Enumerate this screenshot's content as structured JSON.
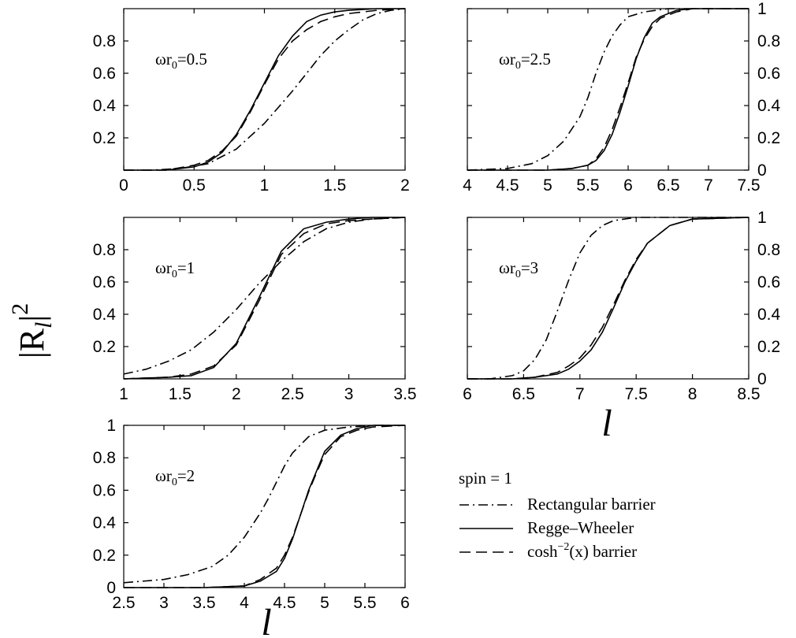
{
  "figure": {
    "y_axis_label": "|R_l|^2",
    "x_axis_label": "l",
    "legend": {
      "title": "spin = 1",
      "entries": [
        {
          "label": "Rectangular barrier",
          "style": "dash-dot"
        },
        {
          "label": "Regge–Wheeler",
          "style": "solid"
        },
        {
          "label": "cosh^-2(x) barrier",
          "style": "dashed"
        }
      ]
    }
  },
  "chart_data": [
    {
      "type": "line",
      "annotation": "ωr0=0.5",
      "xlim": [
        0,
        2
      ],
      "ylim": [
        0,
        1
      ],
      "xticks": [
        "0",
        "0.5",
        "1",
        "1.5",
        "2"
      ],
      "yticks": [
        "0.2",
        "0.4",
        "0.6",
        "0.8"
      ],
      "series": [
        {
          "name": "Rectangular barrier",
          "style": "dash-dot",
          "x": [
            0,
            0.2,
            0.4,
            0.6,
            0.8,
            1.0,
            1.1,
            1.2,
            1.3,
            1.4,
            1.5,
            1.6,
            1.7,
            1.8,
            1.9,
            2.0
          ],
          "y": [
            0.0,
            0.0,
            0.01,
            0.04,
            0.13,
            0.29,
            0.39,
            0.49,
            0.6,
            0.71,
            0.8,
            0.87,
            0.93,
            0.97,
            0.99,
            1.0
          ]
        },
        {
          "name": "Regge–Wheeler",
          "style": "solid",
          "x": [
            0,
            0.3,
            0.5,
            0.6,
            0.7,
            0.8,
            0.9,
            1.0,
            1.1,
            1.2,
            1.3,
            1.4,
            1.5,
            1.6,
            1.8,
            2.0
          ],
          "y": [
            0.0,
            0.0,
            0.02,
            0.05,
            0.11,
            0.22,
            0.37,
            0.54,
            0.71,
            0.83,
            0.92,
            0.96,
            0.98,
            0.99,
            1.0,
            1.0
          ]
        },
        {
          "name": "cosh^-2(x) barrier",
          "style": "dashed",
          "x": [
            0,
            0.3,
            0.5,
            0.6,
            0.7,
            0.8,
            0.9,
            1.0,
            1.1,
            1.2,
            1.3,
            1.4,
            1.5,
            1.6,
            1.8,
            2.0
          ],
          "y": [
            0.0,
            0.0,
            0.03,
            0.06,
            0.12,
            0.21,
            0.36,
            0.53,
            0.69,
            0.8,
            0.87,
            0.92,
            0.95,
            0.97,
            0.99,
            1.0
          ]
        }
      ]
    },
    {
      "type": "line",
      "annotation": "ωr0=2.5",
      "xlim": [
        4,
        7.5
      ],
      "ylim": [
        0,
        1
      ],
      "xticks": [
        "4",
        "4.5",
        "5",
        "5.5",
        "6",
        "6.5",
        "7",
        "7.5"
      ],
      "yticks": [
        "0",
        "0.2",
        "0.4",
        "0.6",
        "0.8",
        "1"
      ],
      "series": [
        {
          "name": "Rectangular barrier",
          "style": "dash-dot",
          "x": [
            4,
            4.5,
            4.8,
            5.0,
            5.2,
            5.4,
            5.5,
            5.6,
            5.7,
            5.8,
            5.9,
            6.0,
            6.2,
            6.5,
            7.0,
            7.5
          ],
          "y": [
            0.0,
            0.01,
            0.04,
            0.09,
            0.18,
            0.33,
            0.45,
            0.6,
            0.73,
            0.83,
            0.9,
            0.95,
            0.98,
            1.0,
            1.0,
            1.0
          ]
        },
        {
          "name": "Regge–Wheeler",
          "style": "solid",
          "x": [
            4,
            5.0,
            5.3,
            5.5,
            5.6,
            5.7,
            5.8,
            5.9,
            6.0,
            6.1,
            6.2,
            6.3,
            6.4,
            6.6,
            6.8,
            7.0,
            7.5
          ],
          "y": [
            0.0,
            0.0,
            0.01,
            0.03,
            0.06,
            0.12,
            0.22,
            0.36,
            0.52,
            0.69,
            0.82,
            0.91,
            0.95,
            0.99,
            1.0,
            1.0,
            1.0
          ]
        },
        {
          "name": "cosh^-2(x) barrier",
          "style": "dashed",
          "x": [
            4,
            5.0,
            5.3,
            5.5,
            5.6,
            5.7,
            5.8,
            5.9,
            6.0,
            6.1,
            6.2,
            6.3,
            6.4,
            6.6,
            6.8,
            7.0,
            7.5
          ],
          "y": [
            0.0,
            0.0,
            0.01,
            0.03,
            0.07,
            0.14,
            0.25,
            0.39,
            0.54,
            0.7,
            0.81,
            0.89,
            0.94,
            0.98,
            1.0,
            1.0,
            1.0
          ]
        }
      ]
    },
    {
      "type": "line",
      "annotation": "ωr0=1",
      "xlim": [
        1,
        3.5
      ],
      "ylim": [
        0,
        1
      ],
      "xticks": [
        "1",
        "1.5",
        "2",
        "2.5",
        "3",
        "3.5"
      ],
      "yticks": [
        "0.2",
        "0.4",
        "0.6",
        "0.8"
      ],
      "series": [
        {
          "name": "Rectangular barrier",
          "style": "dash-dot",
          "x": [
            1.0,
            1.2,
            1.4,
            1.6,
            1.8,
            2.0,
            2.2,
            2.4,
            2.6,
            2.8,
            3.0,
            3.2,
            3.5
          ],
          "y": [
            0.03,
            0.06,
            0.11,
            0.18,
            0.29,
            0.43,
            0.59,
            0.73,
            0.85,
            0.93,
            0.97,
            0.99,
            1.0
          ]
        },
        {
          "name": "Regge–Wheeler",
          "style": "solid",
          "x": [
            1.0,
            1.4,
            1.6,
            1.8,
            2.0,
            2.2,
            2.4,
            2.6,
            2.8,
            3.0,
            3.2,
            3.5
          ],
          "y": [
            0.0,
            0.01,
            0.02,
            0.07,
            0.22,
            0.5,
            0.79,
            0.93,
            0.97,
            0.99,
            1.0,
            1.0
          ]
        },
        {
          "name": "cosh^-2(x) barrier",
          "style": "dashed",
          "x": [
            1.0,
            1.4,
            1.6,
            1.8,
            2.0,
            2.2,
            2.4,
            2.6,
            2.8,
            3.0,
            3.2,
            3.5
          ],
          "y": [
            0.0,
            0.01,
            0.03,
            0.08,
            0.21,
            0.48,
            0.77,
            0.9,
            0.96,
            0.98,
            0.99,
            1.0
          ]
        }
      ]
    },
    {
      "type": "line",
      "annotation": "ωr0=3",
      "xlim": [
        6,
        8.5
      ],
      "ylim": [
        0,
        1
      ],
      "xticks": [
        "6",
        "6.5",
        "7",
        "7.5",
        "8",
        "8.5"
      ],
      "yticks": [
        "0",
        "0.2",
        "0.4",
        "0.6",
        "0.8",
        "1"
      ],
      "series": [
        {
          "name": "Rectangular barrier",
          "style": "dash-dot",
          "x": [
            6.0,
            6.2,
            6.4,
            6.5,
            6.6,
            6.7,
            6.8,
            6.9,
            7.0,
            7.1,
            7.2,
            7.3,
            7.5,
            7.8,
            8.0,
            8.5
          ],
          "y": [
            0.0,
            0.0,
            0.02,
            0.05,
            0.12,
            0.24,
            0.42,
            0.61,
            0.78,
            0.89,
            0.95,
            0.98,
            1.0,
            1.0,
            1.0,
            1.0
          ]
        },
        {
          "name": "Regge–Wheeler",
          "style": "solid",
          "x": [
            6.0,
            6.4,
            6.6,
            6.8,
            6.9,
            7.0,
            7.1,
            7.2,
            7.3,
            7.4,
            7.5,
            7.6,
            7.8,
            8.0,
            8.5
          ],
          "y": [
            0.0,
            0.0,
            0.01,
            0.03,
            0.06,
            0.11,
            0.18,
            0.29,
            0.44,
            0.6,
            0.73,
            0.84,
            0.95,
            0.99,
            1.0
          ]
        },
        {
          "name": "cosh^-2(x) barrier",
          "style": "dashed",
          "x": [
            6.0,
            6.4,
            6.6,
            6.8,
            6.9,
            7.0,
            7.1,
            7.2,
            7.3,
            7.4,
            7.5,
            7.6,
            7.8,
            8.0,
            8.5
          ],
          "y": [
            0.0,
            0.0,
            0.01,
            0.04,
            0.08,
            0.13,
            0.21,
            0.32,
            0.46,
            0.61,
            0.74,
            0.84,
            0.95,
            0.99,
            1.0
          ]
        }
      ]
    },
    {
      "type": "line",
      "annotation": "ωr0=2",
      "xlim": [
        2.5,
        6
      ],
      "ylim": [
        0,
        1
      ],
      "xticks": [
        "2.5",
        "3",
        "3.5",
        "4",
        "4.5",
        "5",
        "5.5",
        "6"
      ],
      "yticks": [
        "0",
        "0.2",
        "0.4",
        "0.6",
        "0.8",
        "1"
      ],
      "series": [
        {
          "name": "Rectangular barrier",
          "style": "dash-dot",
          "x": [
            2.5,
            3.0,
            3.3,
            3.6,
            3.8,
            4.0,
            4.2,
            4.3,
            4.4,
            4.5,
            4.6,
            4.8,
            5.0,
            5.3,
            5.6,
            6.0
          ],
          "y": [
            0.03,
            0.05,
            0.08,
            0.13,
            0.2,
            0.31,
            0.46,
            0.55,
            0.65,
            0.75,
            0.83,
            0.93,
            0.97,
            0.99,
            1.0,
            1.0
          ]
        },
        {
          "name": "Regge–Wheeler",
          "style": "solid",
          "x": [
            2.5,
            3.5,
            4.0,
            4.2,
            4.4,
            4.5,
            4.6,
            4.7,
            4.8,
            4.9,
            5.0,
            5.2,
            5.4,
            5.6,
            6.0
          ],
          "y": [
            0.0,
            0.0,
            0.01,
            0.04,
            0.1,
            0.18,
            0.3,
            0.45,
            0.6,
            0.72,
            0.84,
            0.94,
            0.98,
            1.0,
            1.0
          ]
        },
        {
          "name": "cosh^-2(x) barrier",
          "style": "dashed",
          "x": [
            2.5,
            3.5,
            4.0,
            4.2,
            4.4,
            4.5,
            4.6,
            4.7,
            4.8,
            4.9,
            5.0,
            5.2,
            5.4,
            5.6,
            6.0
          ],
          "y": [
            0.0,
            0.0,
            0.01,
            0.05,
            0.12,
            0.2,
            0.31,
            0.45,
            0.59,
            0.71,
            0.82,
            0.93,
            0.97,
            0.99,
            1.0
          ]
        }
      ]
    }
  ]
}
